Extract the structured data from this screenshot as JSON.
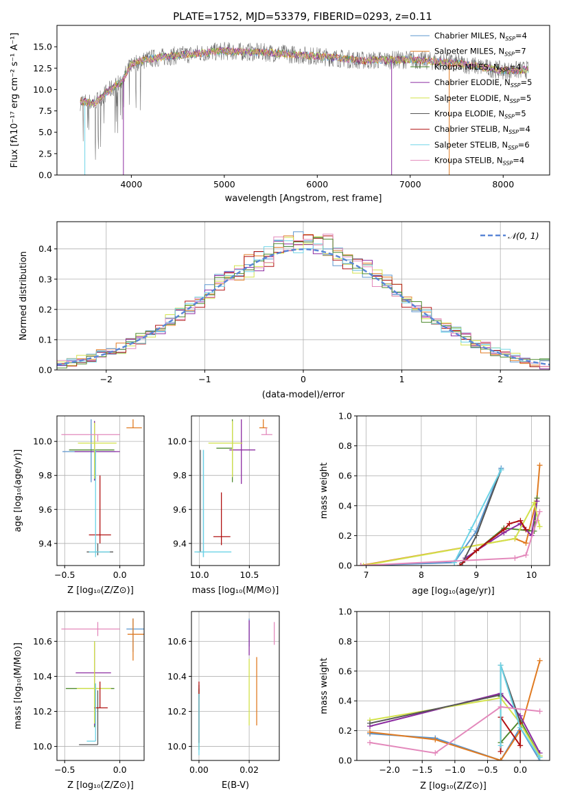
{
  "figure_title": "PLATE=1752, MJD=53379, FIBERID=0293, z=0.11",
  "colors": {
    "series": [
      "#5a95ce",
      "#e07a20",
      "#4f8a2e",
      "#8b2aa0",
      "#d2e24a",
      "#555555",
      "#b01010",
      "#6bd3e6",
      "#e388bb",
      "#999999"
    ],
    "gauss": "#5a86d6",
    "grid": "#b0b0b0"
  },
  "chart_data": [
    {
      "id": "spectrum",
      "type": "line",
      "xlabel": "wavelength [Angstrom, rest frame]",
      "ylabel": "Flux [fλ10⁻¹⁷ erg cm⁻² s⁻¹ A⁻¹]",
      "xlim": [
        3200,
        8500
      ],
      "ylim": [
        0,
        17.5
      ],
      "xticks": [
        4000,
        5000,
        6000,
        7000,
        8000
      ],
      "yticks": [
        0.0,
        2.5,
        5.0,
        7.5,
        10.0,
        12.5,
        15.0
      ],
      "grid": false,
      "legend_position": "upper right",
      "legend": [
        "Chabrier MILES, N_SSP=4",
        "Salpeter MILES, N_SSP=7",
        "Kroupa MILES, N_SSP=4",
        "Chabrier ELODIE, N_SSP=5",
        "Salpeter ELODIE, N_SSP=5",
        "Kroupa ELODIE, N_SSP=5",
        "Chabrier STELIB, N_SSP=4",
        "Salpeter STELIB, N_SSP=6",
        "Kroupa STELIB, N_SSP=4"
      ],
      "continuum_x": [
        3450,
        3600,
        3750,
        3900,
        4000,
        4200,
        4500,
        5000,
        5500,
        6000,
        6500,
        7000,
        7500,
        8000,
        8270
      ],
      "continuum_y": [
        8.6,
        8.4,
        9.8,
        11.0,
        13.0,
        13.6,
        14.0,
        14.5,
        14.3,
        13.9,
        13.4,
        13.5,
        13.1,
        12.2,
        12.3
      ],
      "data_range_x": [
        3450,
        8270
      ]
    },
    {
      "id": "residual-histogram",
      "type": "bar",
      "xlabel": "(data-model)/error",
      "ylabel": "Normed distribution",
      "xlim": [
        -2.5,
        2.5
      ],
      "ylim": [
        0,
        0.49
      ],
      "xticks": [
        -2,
        -1,
        0,
        1,
        2
      ],
      "yticks": [
        0.0,
        0.1,
        0.2,
        0.3,
        0.4
      ],
      "grid": true,
      "legend_position": "upper right",
      "legend": [
        "𝒩(0, 1)"
      ],
      "gauss_mean": 0,
      "gauss_sigma": 1,
      "bin_width": 0.1
    },
    {
      "id": "age-vs-Z",
      "type": "scatter",
      "xlabel": "Z [log₁₀(Z/Z⊙)]",
      "ylabel": "age  [log₁₀(age/yr)]",
      "xlim": [
        -0.57,
        0.22
      ],
      "ylim": [
        9.27,
        10.15
      ],
      "xticks": [
        -0.5,
        0.0
      ],
      "yticks": [
        9.4,
        9.6,
        9.8,
        10.0
      ],
      "grid": true,
      "points": [
        {
          "x": -0.26,
          "y": 9.94,
          "xerr": [
            0.26,
            0.22
          ],
          "yerr": [
            0.18,
            0.19
          ]
        },
        {
          "x": 0.12,
          "y": 10.08,
          "xerr": [
            0.06,
            0.08
          ],
          "yerr": [
            0.0,
            0.05
          ]
        },
        {
          "x": -0.23,
          "y": 9.95,
          "xerr": [
            0.23,
            0.18
          ],
          "yerr": [
            0.18,
            0.17
          ]
        },
        {
          "x": -0.23,
          "y": 9.94,
          "xerr": [
            0.18,
            0.23
          ],
          "yerr": [
            0.17,
            0.18
          ]
        },
        {
          "x": -0.23,
          "y": 9.99,
          "xerr": [
            0.15,
            0.2
          ],
          "yerr": [
            0.21,
            0.12
          ]
        },
        {
          "x": -0.2,
          "y": 9.35,
          "xerr": [
            0.1,
            0.14
          ],
          "yerr": [
            0.02,
            0.05
          ]
        },
        {
          "x": -0.18,
          "y": 9.45,
          "xerr": [
            0.1,
            0.1
          ],
          "yerr": [
            0.05,
            0.35
          ]
        },
        {
          "x": -0.22,
          "y": 9.35,
          "xerr": [
            0.06,
            0.13
          ],
          "yerr": [
            0.03,
            0.6
          ]
        },
        {
          "x": -0.2,
          "y": 10.04,
          "xerr": [
            0.33,
            0.2
          ],
          "yerr": [
            0.04,
            0.0
          ]
        }
      ]
    },
    {
      "id": "age-vs-mass",
      "type": "scatter",
      "xlabel": "mass [log₁₀(M/M⊙)]",
      "ylabel": "",
      "xlim": [
        9.92,
        10.8
      ],
      "ylim": [
        9.27,
        10.15
      ],
      "xticks": [
        10.0,
        10.5
      ],
      "yticks": [
        9.4,
        9.6,
        9.8,
        10.0
      ],
      "grid": true,
      "points": [
        {
          "x": 10.04,
          "y": 9.95,
          "xerr": [
            0.0,
            0.0
          ],
          "yerr": [
            0.63,
            0.0
          ]
        },
        {
          "x": 10.64,
          "y": 10.08,
          "xerr": [
            0.04,
            0.04
          ],
          "yerr": [
            0.0,
            0.05
          ]
        },
        {
          "x": 10.33,
          "y": 9.96,
          "xerr": [
            0.16,
            0.0
          ],
          "yerr": [
            0.2,
            0.17
          ]
        },
        {
          "x": 10.42,
          "y": 9.95,
          "xerr": [
            0.12,
            0.14
          ],
          "yerr": [
            0.2,
            0.18
          ]
        },
        {
          "x": 10.33,
          "y": 9.99,
          "xerr": [
            0.24,
            0.1
          ],
          "yerr": [
            0.2,
            0.13
          ]
        },
        {
          "x": 10.01,
          "y": 9.35,
          "xerr": [
            0.03,
            0.0
          ],
          "yerr": [
            0.0,
            0.6
          ]
        },
        {
          "x": 10.22,
          "y": 9.44,
          "xerr": [
            0.08,
            0.09
          ],
          "yerr": [
            0.05,
            0.26
          ]
        },
        {
          "x": 10.04,
          "y": 9.35,
          "xerr": [
            0.09,
            0.28
          ],
          "yerr": [
            0.03,
            0.6
          ]
        },
        {
          "x": 10.67,
          "y": 10.04,
          "xerr": [
            0.05,
            0.06
          ],
          "yerr": [
            0.0,
            0.04
          ]
        }
      ]
    },
    {
      "id": "mass-weight-vs-age",
      "type": "line",
      "xlabel": "age  [log₁₀(age/yr)]",
      "ylabel": "mass weight",
      "xlim": [
        6.83,
        10.33
      ],
      "ylim": [
        0.0,
        1.0
      ],
      "xticks": [
        7,
        8,
        9,
        10
      ],
      "yticks": [
        0.0,
        0.2,
        0.4,
        0.6,
        0.8,
        1.0
      ],
      "grid": true,
      "series": [
        {
          "x": [
            6.9,
            8.6,
            9.0,
            9.45
          ],
          "y": [
            0.0,
            0.02,
            0.23,
            0.65
          ]
        },
        {
          "x": [
            6.9,
            9.7,
            9.9,
            10.1,
            10.15
          ],
          "y": [
            0.0,
            0.18,
            0.15,
            0.45,
            0.67
          ]
        },
        {
          "x": [
            8.7,
            9.0,
            9.5,
            10.05,
            10.1
          ],
          "y": [
            0.0,
            0.1,
            0.25,
            0.23,
            0.45
          ]
        },
        {
          "x": [
            8.8,
            9.5,
            9.8,
            10.0,
            10.1
          ],
          "y": [
            0.05,
            0.22,
            0.28,
            0.2,
            0.43
          ]
        },
        {
          "x": [
            6.95,
            9.7,
            10.05,
            10.15
          ],
          "y": [
            0.0,
            0.18,
            0.42,
            0.26
          ]
        },
        {
          "x": [
            8.75,
            9.0,
            9.45
          ],
          "y": [
            0.02,
            0.2,
            0.64
          ]
        },
        {
          "x": [
            8.7,
            9.0,
            9.5,
            9.6,
            9.8,
            9.9
          ],
          "y": [
            0.0,
            0.1,
            0.24,
            0.28,
            0.3,
            0.24
          ]
        },
        {
          "x": [
            8.6,
            8.9,
            9.45
          ],
          "y": [
            0.02,
            0.24,
            0.64
          ]
        },
        {
          "x": [
            6.9,
            9.7,
            9.9,
            10.1,
            10.15
          ],
          "y": [
            0.0,
            0.05,
            0.07,
            0.3,
            0.36
          ]
        }
      ]
    },
    {
      "id": "mass-vs-Z",
      "type": "scatter",
      "xlabel": "Z [log₁₀(Z/Z⊙)]",
      "ylabel": "mass [log₁₀(M/M⊙)]",
      "xlim": [
        -0.57,
        0.22
      ],
      "ylim": [
        9.92,
        10.77
      ],
      "xticks": [
        -0.5,
        0.0
      ],
      "yticks": [
        10.0,
        10.2,
        10.4,
        10.6
      ],
      "grid": true,
      "points": [
        {
          "x": 0.12,
          "y": 10.67,
          "xerr": [
            0.06,
            0.18
          ],
          "yerr": [
            0.13,
            0.06
          ]
        },
        {
          "x": 0.12,
          "y": 10.64,
          "xerr": [
            0.05,
            0.18
          ],
          "yerr": [
            0.15,
            0.09
          ]
        },
        {
          "x": -0.23,
          "y": 10.33,
          "xerr": [
            0.26,
            0.18
          ],
          "yerr": [
            0.22,
            0.27
          ]
        },
        {
          "x": -0.23,
          "y": 10.42,
          "xerr": [
            0.17,
            0.15
          ],
          "yerr": [
            0.3,
            0.17
          ]
        },
        {
          "x": -0.23,
          "y": 10.33,
          "xerr": [
            0.16,
            0.15
          ],
          "yerr": [
            0.2,
            0.27
          ]
        },
        {
          "x": -0.2,
          "y": 10.01,
          "xerr": [
            0.17,
            0.0
          ],
          "yerr": [
            0.0,
            0.31
          ]
        },
        {
          "x": -0.18,
          "y": 10.22,
          "xerr": [
            0.05,
            0.07
          ],
          "yerr": [
            0.0,
            0.15
          ]
        },
        {
          "x": -0.22,
          "y": 10.03,
          "xerr": [
            0.08,
            0.0
          ],
          "yerr": [
            0.0,
            0.33
          ]
        },
        {
          "x": -0.2,
          "y": 10.67,
          "xerr": [
            0.33,
            0.2
          ],
          "yerr": [
            0.04,
            0.04
          ]
        }
      ]
    },
    {
      "id": "mass-vs-EBV",
      "type": "scatter",
      "xlabel": "E(B-V)",
      "ylabel": "",
      "xlim": [
        -0.003,
        0.032
      ],
      "ylim": [
        9.92,
        10.77
      ],
      "xticks": [
        0.0,
        0.02
      ],
      "yticks": [
        10.0,
        10.2,
        10.4,
        10.6
      ],
      "grid": true,
      "points": [
        {
          "x": 0.02,
          "y": 10.64,
          "xerr": [
            0,
            0
          ],
          "yerr": [
            0.07,
            0.09
          ]
        },
        {
          "x": 0.023,
          "y": 10.4,
          "xerr": [
            0,
            0
          ],
          "yerr": [
            0.28,
            0.11
          ]
        },
        {
          "x": 0.0,
          "y": 10.3,
          "xerr": [
            0,
            0
          ],
          "yerr": [
            0.32,
            0.03
          ]
        },
        {
          "x": 0.02,
          "y": 10.62,
          "xerr": [
            0,
            0
          ],
          "yerr": [
            0.1,
            0.1
          ]
        },
        {
          "x": 0.02,
          "y": 10.4,
          "xerr": [
            0,
            0
          ],
          "yerr": [
            0.28,
            0.1
          ]
        },
        {
          "x": 0.0,
          "y": 10.2,
          "xerr": [
            0,
            0
          ],
          "yerr": [
            0.18,
            0.15
          ]
        },
        {
          "x": 0.0,
          "y": 10.22,
          "xerr": [
            0,
            0
          ],
          "yerr": [
            0.2,
            0.15
          ]
        },
        {
          "x": 0.0,
          "y": 10.0,
          "xerr": [
            0,
            0
          ],
          "yerr": [
            0.05,
            0.3
          ]
        },
        {
          "x": 0.03,
          "y": 10.62,
          "xerr": [
            0,
            0
          ],
          "yerr": [
            0.04,
            0.09
          ]
        }
      ]
    },
    {
      "id": "mass-weight-vs-Z",
      "type": "line",
      "xlabel": "Z [log₁₀(Z/Z⊙)]",
      "ylabel": "mass weight",
      "xlim": [
        -2.5,
        0.45
      ],
      "ylim": [
        0.0,
        1.0
      ],
      "xticks": [
        -2.0,
        -1.5,
        -1.0,
        -0.5,
        0.0
      ],
      "yticks": [
        0.0,
        0.2,
        0.4,
        0.6,
        0.8,
        1.0
      ],
      "grid": true,
      "series": [
        {
          "x": [
            -2.3,
            -1.3,
            -0.3,
            0.0,
            0.3
          ],
          "y": [
            0.18,
            0.15,
            0.0,
            0.22,
            0.0
          ]
        },
        {
          "x": [
            -2.3,
            -1.3,
            -0.3,
            0.0,
            0.3
          ],
          "y": [
            0.19,
            0.14,
            0.0,
            0.2,
            0.67
          ]
        },
        {
          "x": [
            -0.3,
            -0.3,
            0.0,
            0.3
          ],
          "y": [
            0.43,
            0.12,
            0.27,
            0.03
          ]
        },
        {
          "x": [
            -2.3,
            -0.3,
            0.0,
            0.3
          ],
          "y": [
            0.23,
            0.45,
            0.3,
            0.05
          ]
        },
        {
          "x": [
            -2.3,
            -0.3,
            0.0,
            0.3
          ],
          "y": [
            0.27,
            0.42,
            0.25,
            0.03
          ]
        },
        {
          "x": [
            -2.3,
            -0.3,
            -0.3,
            0.0
          ],
          "y": [
            0.25,
            0.44,
            0.64,
            0.26
          ]
        },
        {
          "x": [
            -0.3,
            -0.3,
            0.0,
            0.0
          ],
          "y": [
            0.06,
            0.29,
            0.1,
            0.25
          ]
        },
        {
          "x": [
            -0.3,
            -0.3,
            0.0,
            0.3
          ],
          "y": [
            0.1,
            0.64,
            0.22,
            0.02
          ]
        },
        {
          "x": [
            -2.3,
            -1.3,
            -0.3,
            0.3
          ],
          "y": [
            0.12,
            0.05,
            0.36,
            0.33
          ]
        }
      ]
    }
  ]
}
